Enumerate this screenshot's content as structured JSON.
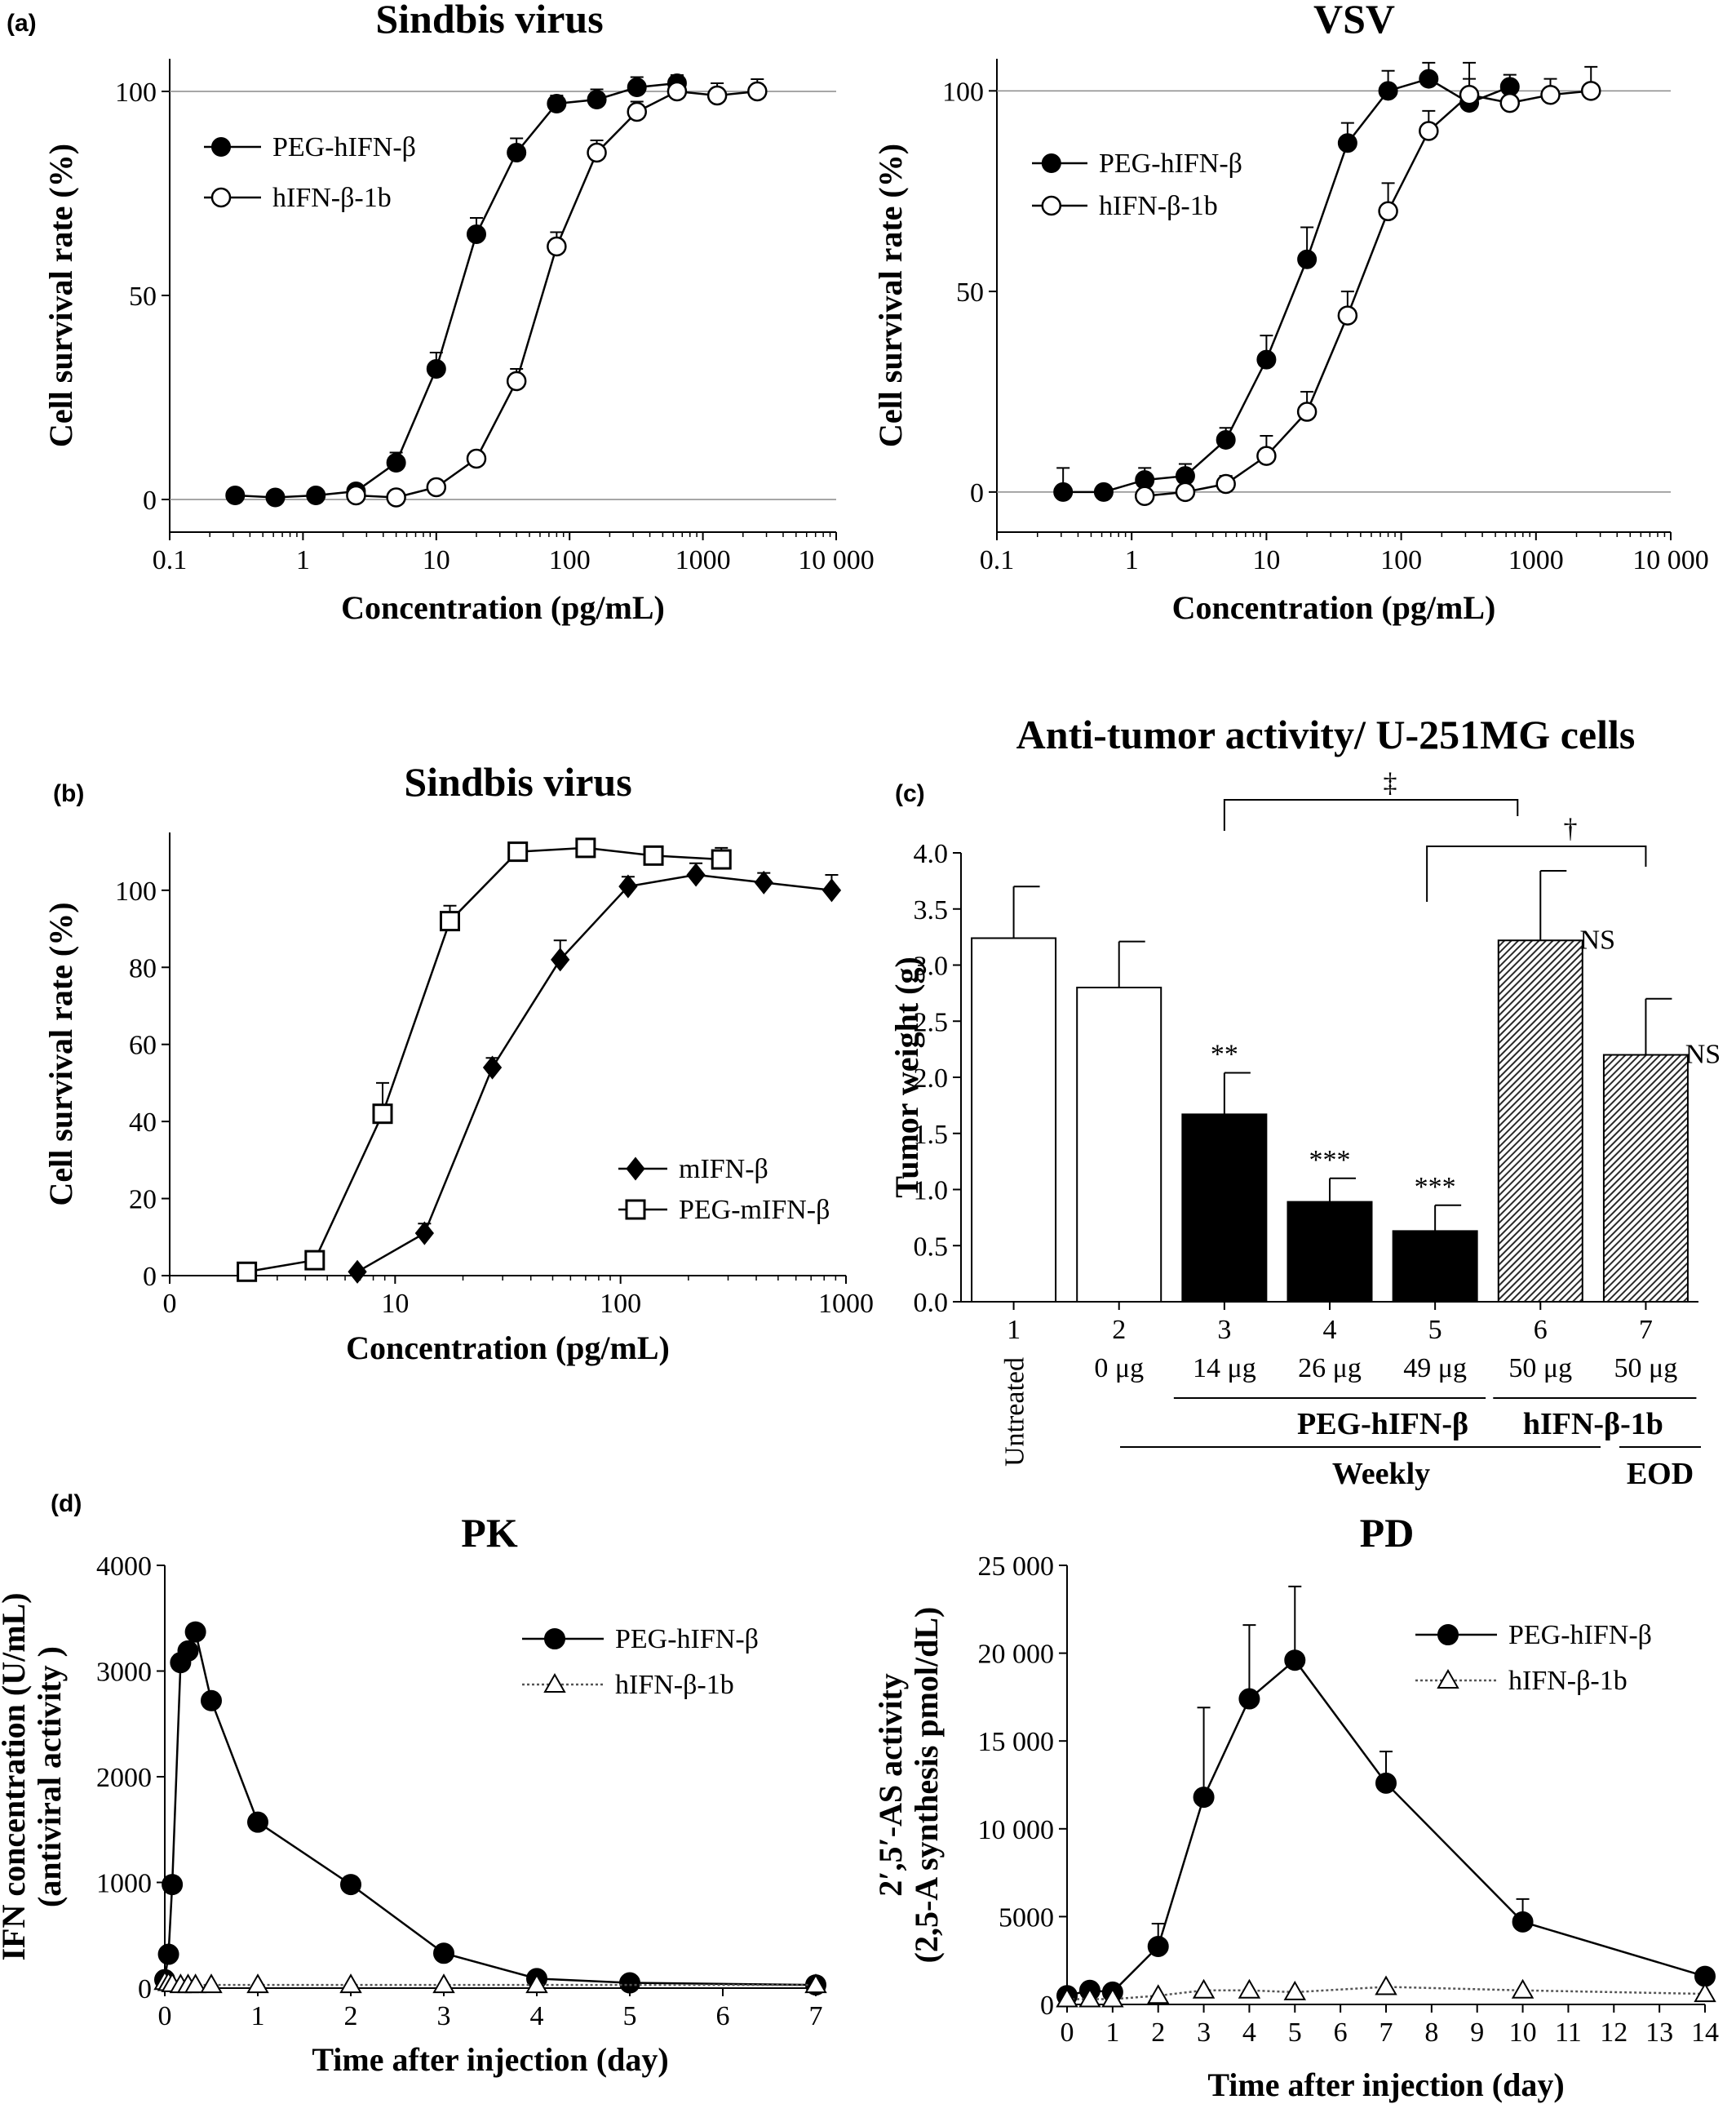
{
  "chart_data": [
    {
      "panel_label": "(a)",
      "type": "scatter",
      "title": "Sindbis virus",
      "xlabel": "Concentration (pg/mL)",
      "ylabel": "Cell survival rate (%)",
      "x_scale": "log",
      "xlim": [
        0.1,
        10000
      ],
      "ylim": [
        -8,
        108
      ],
      "x_ticks": [
        0.1,
        1,
        10,
        100,
        1000,
        10000
      ],
      "x_tick_labels": [
        "0.1",
        "1",
        "10",
        "100",
        "1000",
        "10 000"
      ],
      "y_ticks": [
        0,
        50,
        100
      ],
      "y_tick_labels": [
        "0",
        "50",
        "100"
      ],
      "ref_lines": [
        0,
        100
      ],
      "legend_position": "upper-left",
      "series": [
        {
          "name": "PEG-hIFN-β",
          "marker": "filled-circle",
          "x": [
            0.31,
            0.62,
            1.25,
            2.5,
            5,
            10,
            20,
            40,
            80,
            160,
            320,
            640
          ],
          "y": [
            1,
            0.5,
            1,
            2,
            9,
            32,
            65,
            85,
            97,
            98,
            101,
            102
          ],
          "err": [
            0,
            0,
            0,
            1.5,
            2.5,
            4,
            4,
            3.5,
            2,
            2.5,
            2.5,
            2
          ]
        },
        {
          "name": "hIFN-β-1b",
          "marker": "open-circle",
          "x": [
            2.5,
            5,
            10,
            20,
            40,
            80,
            160,
            320,
            640,
            1280,
            2560
          ],
          "y": [
            1,
            0.5,
            3,
            10,
            29,
            62,
            85,
            95,
            100,
            99,
            100
          ],
          "err": [
            0,
            0,
            0,
            1.5,
            3,
            3.5,
            3,
            2.5,
            3,
            3,
            3
          ]
        }
      ]
    },
    {
      "panel_label": "",
      "type": "scatter",
      "title": "VSV",
      "xlabel": "Concentration (pg/mL)",
      "ylabel": "Cell survival rate (%)",
      "x_scale": "log",
      "xlim": [
        0.1,
        10000
      ],
      "ylim": [
        -10,
        108
      ],
      "x_ticks": [
        0.1,
        1,
        10,
        100,
        1000,
        10000
      ],
      "x_tick_labels": [
        "0.1",
        "1",
        "10",
        "100",
        "1000",
        "10 000"
      ],
      "y_ticks": [
        0,
        50,
        100
      ],
      "y_tick_labels": [
        "0",
        "50",
        "100"
      ],
      "ref_lines": [
        0,
        100
      ],
      "legend_position": "upper-left",
      "series": [
        {
          "name": "PEG-hIFN-β",
          "marker": "filled-circle",
          "x": [
            0.31,
            0.62,
            1.25,
            2.5,
            5,
            10,
            20,
            40,
            80,
            160,
            320,
            640
          ],
          "y": [
            0,
            0,
            3,
            4,
            13,
            33,
            58,
            87,
            100,
            103,
            97,
            101
          ],
          "err": [
            6,
            0,
            3,
            3,
            3,
            6,
            8,
            5,
            5,
            4,
            6,
            3
          ]
        },
        {
          "name": "hIFN-β-1b",
          "marker": "open-circle",
          "x": [
            1.25,
            2.5,
            5,
            10,
            20,
            40,
            80,
            160,
            320,
            640,
            1280,
            2560
          ],
          "y": [
            -1,
            0,
            2,
            9,
            20,
            44,
            70,
            90,
            99,
            97,
            99,
            100
          ],
          "err": [
            3,
            3,
            2,
            5,
            5,
            6,
            7,
            5,
            8,
            3,
            4,
            6
          ]
        }
      ]
    },
    {
      "panel_label": "(b)",
      "type": "line",
      "title": "Sindbis virus",
      "xlabel": "Concentration (pg/mL)",
      "ylabel": "Cell survival rate (%)",
      "x_scale": "log",
      "xlim": [
        1,
        1000
      ],
      "ylim": [
        0,
        115
      ],
      "x_ticks": [
        1,
        10,
        100,
        1000
      ],
      "x_tick_labels": [
        "0",
        "10",
        "100",
        "1000"
      ],
      "y_ticks": [
        0,
        20,
        40,
        60,
        80,
        100
      ],
      "y_tick_labels": [
        "0",
        "20",
        "40",
        "60",
        "80",
        "100"
      ],
      "legend_position": "lower-right",
      "series": [
        {
          "name": "mIFN-β",
          "marker": "filled-diamond",
          "x": [
            6.8,
            13.5,
            27,
            54,
            108,
            216,
            432,
            864
          ],
          "y": [
            1,
            11,
            54,
            82,
            101,
            104,
            102,
            100
          ],
          "err": [
            0,
            2.5,
            2.5,
            5,
            2.5,
            3,
            2.5,
            4
          ]
        },
        {
          "name": "PEG-mIFN-β",
          "marker": "open-square",
          "x": [
            2.2,
            4.4,
            8.8,
            17.5,
            35,
            70,
            140,
            280
          ],
          "y": [
            1,
            4,
            42,
            92,
            110,
            111,
            109,
            108
          ],
          "err": [
            0,
            0,
            8,
            4,
            0,
            0,
            0,
            3
          ]
        }
      ]
    },
    {
      "panel_label": "(c)",
      "type": "bar",
      "title": "Anti-tumor activity/ U-251MG cells",
      "xlabel": "",
      "ylabel": "Tumor weight (g)",
      "ylim": [
        0,
        4
      ],
      "y_ticks": [
        0,
        0.5,
        1,
        1.5,
        2,
        2.5,
        3,
        3.5,
        4
      ],
      "y_tick_labels": [
        "0.0",
        "0.5",
        "1.0",
        "1.5",
        "2.0",
        "2.5",
        "3.0",
        "3.5",
        "4.0"
      ],
      "categories": [
        "1",
        "2",
        "3",
        "4",
        "5",
        "6",
        "7"
      ],
      "doses": [
        "",
        "0 μg",
        "14 μg",
        "26 μg",
        "49 μg",
        "50 μg",
        "50 μg"
      ],
      "values": [
        3.24,
        2.8,
        1.67,
        0.89,
        0.63,
        3.22,
        2.2
      ],
      "errors": [
        0.46,
        0.41,
        0.37,
        0.21,
        0.23,
        0.62,
        0.5
      ],
      "fills": [
        "white",
        "white",
        "black",
        "black",
        "black",
        "hatched",
        "hatched"
      ],
      "annotations": [
        "",
        "",
        "**",
        "***",
        "***",
        "NS",
        "NS"
      ],
      "untreated_label": "Untreated",
      "group_labels": [
        "PEG-hIFN-β",
        "hIFN-β-1b",
        "Weekly",
        "EOD"
      ],
      "brackets": [
        {
          "from": "3",
          "to": "6",
          "symbol": "‡"
        },
        {
          "from": "5",
          "to": "7",
          "symbol": "†"
        }
      ]
    },
    {
      "panel_label": "(d)",
      "type": "line",
      "title": "PK",
      "xlabel": "Time after injection (day)",
      "ylabel": "IFN concentration (U/mL)",
      "ylabel2": "(antiviral activity )",
      "xlim": [
        0,
        7
      ],
      "ylim": [
        0,
        4000
      ],
      "x_ticks": [
        0,
        1,
        2,
        3,
        4,
        5,
        6,
        7
      ],
      "y_ticks": [
        0,
        1000,
        2000,
        3000,
        4000
      ],
      "y_tick_labels": [
        "0",
        "1000",
        "2000",
        "3000",
        "4000"
      ],
      "legend_position": "upper-right",
      "series": [
        {
          "name": "PEG-hIFN-β",
          "marker": "filled-circle",
          "x": [
            0,
            0.04,
            0.08,
            0.17,
            0.25,
            0.33,
            0.5,
            1,
            2,
            3,
            4,
            5,
            7
          ],
          "y": [
            80,
            320,
            980,
            3080,
            3190,
            3370,
            2720,
            1570,
            980,
            330,
            90,
            50,
            30
          ]
        },
        {
          "name": "hIFN-β-1b",
          "marker": "open-triangle",
          "x": [
            0,
            0.04,
            0.08,
            0.17,
            0.25,
            0.33,
            0.5,
            1,
            2,
            3,
            4,
            7
          ],
          "y": [
            60,
            50,
            40,
            30,
            30,
            30,
            30,
            30,
            30,
            30,
            30,
            30
          ]
        }
      ]
    },
    {
      "panel_label": "",
      "type": "line",
      "title": "PD",
      "xlabel": "Time after injection (day)",
      "ylabel": "2′,5′-AS activity",
      "ylabel2": "(2,5-A synthesis pmol/dL)",
      "xlim": [
        0,
        14
      ],
      "ylim": [
        0,
        25000
      ],
      "x_ticks": [
        0,
        1,
        2,
        3,
        4,
        5,
        6,
        7,
        8,
        9,
        10,
        11,
        12,
        13,
        14
      ],
      "y_ticks": [
        0,
        5000,
        10000,
        15000,
        20000,
        25000
      ],
      "y_tick_labels": [
        "0",
        "5000",
        "10 000",
        "15 000",
        "20 000",
        "25 000"
      ],
      "legend_position": "upper-right",
      "series": [
        {
          "name": "PEG-hIFN-β",
          "marker": "filled-circle",
          "x": [
            0,
            0.5,
            1,
            2,
            3,
            4,
            5,
            7,
            10,
            14
          ],
          "y": [
            500,
            800,
            700,
            3300,
            11800,
            17400,
            19600,
            12600,
            4700,
            1600
          ],
          "err": [
            0,
            0,
            0,
            1300,
            5100,
            4200,
            4200,
            1800,
            1300,
            0
          ]
        },
        {
          "name": "hIFN-β-1b",
          "marker": "open-triangle",
          "x": [
            0,
            0.5,
            1,
            2,
            3,
            4,
            5,
            7,
            10,
            14
          ],
          "y": [
            300,
            300,
            300,
            500,
            800,
            800,
            700,
            1000,
            800,
            600
          ]
        }
      ]
    }
  ]
}
